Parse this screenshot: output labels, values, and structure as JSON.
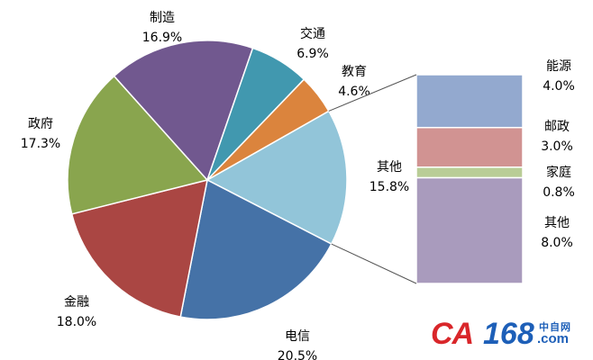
{
  "chart_data": {
    "type": "pie",
    "subtype": "pie-of-bar",
    "slices": [
      {
        "name": "其他",
        "value": 15.8,
        "label": "15.8%",
        "color": "#92c5d9"
      },
      {
        "name": "电信",
        "value": 20.5,
        "label": "20.5%",
        "color": "#4572a7"
      },
      {
        "name": "金融",
        "value": 18.0,
        "label": "18.0%",
        "color": "#aa4643"
      },
      {
        "name": "政府",
        "value": 17.3,
        "label": "17.3%",
        "color": "#89a54e"
      },
      {
        "name": "制造",
        "value": 16.9,
        "label": "16.9%",
        "color": "#71588f"
      },
      {
        "name": "交通",
        "value": 6.9,
        "label": "6.9%",
        "color": "#4198af"
      },
      {
        "name": "教育",
        "value": 4.6,
        "label": "4.6%",
        "color": "#db843d"
      }
    ],
    "breakdown_of": "其他",
    "bar": [
      {
        "name": "能源",
        "value": 4.0,
        "label": "4.0%",
        "color": "#93a9cf"
      },
      {
        "name": "邮政",
        "value": 3.0,
        "label": "3.0%",
        "color": "#d19392"
      },
      {
        "name": "家庭",
        "value": 0.8,
        "label": "0.8%",
        "color": "#b9cd96"
      },
      {
        "name": "其他",
        "value": 8.0,
        "label": "8.0%",
        "color": "#a99bbd"
      }
    ]
  },
  "logo": {
    "brand": "CA",
    "number": "168",
    "cn": "中自网",
    "domain": ".com"
  }
}
